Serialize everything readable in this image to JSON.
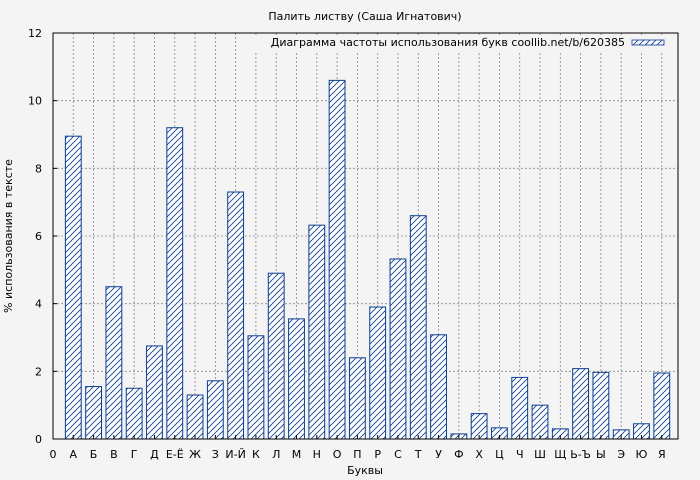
{
  "chart_data": {
    "type": "bar",
    "title": "Палить листву (Саша Игнатович)",
    "xlabel": "Буквы",
    "ylabel": "% использования в тексте",
    "ylim": [
      0,
      12
    ],
    "yticks": [
      0,
      2,
      4,
      6,
      8,
      10,
      12
    ],
    "grid": true,
    "legend_position": "top-right",
    "zero_label": "0",
    "categories": [
      "А",
      "Б",
      "В",
      "Г",
      "Д",
      "Е-Ё",
      "Ж",
      "З",
      "И-Й",
      "К",
      "Л",
      "М",
      "Н",
      "О",
      "П",
      "Р",
      "С",
      "Т",
      "У",
      "Ф",
      "Х",
      "Ц",
      "Ч",
      "Ш",
      "Щ",
      "Ь-Ъ",
      "Ы",
      "Э",
      "Ю",
      "Я"
    ],
    "series": [
      {
        "name": "Диаграмма частоты использования букв coollib.net/b/620385",
        "color": "#0b3d91",
        "values": [
          8.95,
          1.55,
          4.5,
          1.5,
          2.75,
          9.2,
          1.3,
          1.72,
          7.3,
          3.05,
          4.9,
          3.55,
          6.32,
          10.6,
          2.4,
          3.9,
          5.32,
          6.6,
          3.08,
          0.15,
          0.75,
          0.33,
          1.82,
          1.0,
          0.3,
          2.08,
          1.97,
          0.27,
          0.45,
          1.95
        ]
      }
    ]
  }
}
